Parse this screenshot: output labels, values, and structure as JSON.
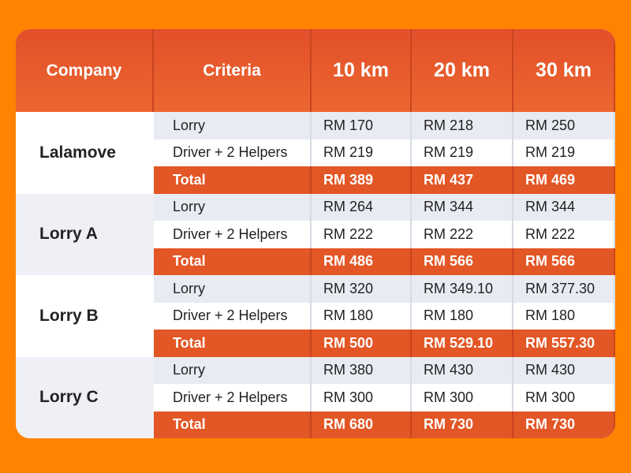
{
  "header": [
    "Company",
    "Criteria",
    "10 km",
    "20 km",
    "30 km"
  ],
  "groups": [
    {
      "company": "Lalamove",
      "rows": [
        [
          "Lorry",
          "RM 170",
          "RM 218",
          "RM 250"
        ],
        [
          "Driver + 2 Helpers",
          "RM 219",
          "RM 219",
          "RM 219"
        ],
        [
          "Total",
          "RM 389",
          "RM 437",
          "RM 469"
        ]
      ]
    },
    {
      "company": "Lorry A",
      "rows": [
        [
          "Lorry",
          "RM 264",
          "RM 344",
          "RM 344"
        ],
        [
          "Driver + 2 Helpers",
          "RM 222",
          "RM 222",
          "RM 222"
        ],
        [
          "Total",
          "RM 486",
          "RM 566",
          "RM 566"
        ]
      ]
    },
    {
      "company": "Lorry B",
      "rows": [
        [
          "Lorry",
          "RM 320",
          "RM 349.10",
          "RM 377.30"
        ],
        [
          "Driver + 2 Helpers",
          "RM 180",
          "RM 180",
          "RM 180"
        ],
        [
          "Total",
          "RM 500",
          "RM 529.10",
          "RM 557.30"
        ]
      ]
    },
    {
      "company": "Lorry C",
      "rows": [
        [
          "Lorry",
          "RM 380",
          "RM 430",
          "RM 430"
        ],
        [
          "Driver + 2 Helpers",
          "RM 300",
          "RM 300",
          "RM 300"
        ],
        [
          "Total",
          "RM 680",
          "RM 730",
          "RM 730"
        ]
      ]
    }
  ]
}
